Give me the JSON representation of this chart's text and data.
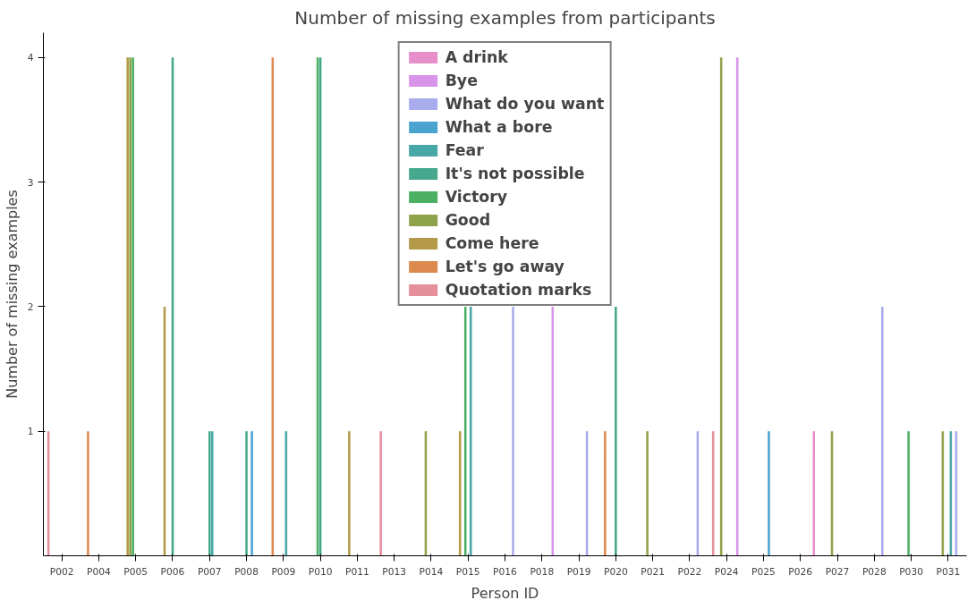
{
  "chart_data": {
    "type": "bar",
    "title": "Number of missing examples from participants",
    "xlabel": "Person ID",
    "ylabel": "Number of missing examples",
    "categories": [
      "P002",
      "P004",
      "P005",
      "P006",
      "P007",
      "P008",
      "P009",
      "P010",
      "P011",
      "P013",
      "P014",
      "P015",
      "P016",
      "P018",
      "P019",
      "P020",
      "P021",
      "P022",
      "P024",
      "P025",
      "P026",
      "P027",
      "P028",
      "P030",
      "P031"
    ],
    "ylim": [
      0,
      4.2
    ],
    "yticks": [
      1,
      2,
      3,
      4
    ],
    "grid": false,
    "legend": "top",
    "series": [
      {
        "name": "A drink",
        "color": "#e68fcb",
        "values": [
          null,
          null,
          null,
          null,
          null,
          null,
          null,
          null,
          null,
          null,
          null,
          null,
          null,
          null,
          null,
          null,
          null,
          null,
          null,
          null,
          1,
          null,
          null,
          null,
          null
        ]
      },
      {
        "name": "Bye",
        "color": "#d894e8",
        "values": [
          null,
          null,
          null,
          null,
          null,
          null,
          null,
          null,
          null,
          null,
          null,
          null,
          null,
          2,
          null,
          null,
          null,
          null,
          4,
          null,
          null,
          null,
          null,
          null,
          null
        ]
      },
      {
        "name": "What do you want",
        "color": "#a8acec",
        "values": [
          null,
          null,
          null,
          null,
          null,
          null,
          null,
          null,
          null,
          null,
          null,
          null,
          2,
          null,
          1,
          null,
          null,
          1,
          null,
          null,
          null,
          null,
          2,
          null,
          1
        ]
      },
      {
        "name": "What a bore",
        "color": "#4ba3cf",
        "values": [
          null,
          null,
          null,
          null,
          null,
          1,
          null,
          null,
          null,
          null,
          null,
          null,
          null,
          null,
          null,
          null,
          null,
          null,
          null,
          1,
          null,
          null,
          null,
          null,
          null
        ]
      },
      {
        "name": "Fear",
        "color": "#48a7a7",
        "values": [
          null,
          null,
          null,
          null,
          1,
          null,
          1,
          null,
          null,
          null,
          null,
          2,
          null,
          null,
          null,
          null,
          null,
          null,
          null,
          null,
          null,
          null,
          null,
          null,
          1
        ]
      },
      {
        "name": "It's not possible",
        "color": "#46a88d",
        "values": [
          null,
          null,
          null,
          4,
          1,
          1,
          null,
          4,
          null,
          null,
          null,
          null,
          null,
          null,
          null,
          2,
          null,
          null,
          null,
          null,
          null,
          null,
          null,
          null,
          null
        ]
      },
      {
        "name": "Victory",
        "color": "#4bb062",
        "values": [
          null,
          null,
          4,
          null,
          null,
          null,
          null,
          4,
          null,
          null,
          null,
          2,
          null,
          null,
          null,
          null,
          null,
          null,
          null,
          null,
          null,
          null,
          null,
          1,
          null
        ]
      },
      {
        "name": "Good",
        "color": "#8fa34a",
        "values": [
          null,
          null,
          4,
          null,
          null,
          null,
          null,
          null,
          null,
          null,
          1,
          null,
          null,
          null,
          null,
          null,
          1,
          null,
          4,
          null,
          null,
          1,
          null,
          null,
          1
        ]
      },
      {
        "name": "Come here",
        "color": "#b49a48",
        "values": [
          null,
          null,
          4,
          2,
          null,
          null,
          null,
          null,
          1,
          null,
          null,
          1,
          null,
          null,
          null,
          null,
          null,
          null,
          null,
          null,
          null,
          null,
          null,
          null,
          null
        ]
      },
      {
        "name": "Let's go away",
        "color": "#dd8a4f",
        "values": [
          null,
          1,
          null,
          null,
          null,
          null,
          4,
          null,
          null,
          null,
          null,
          null,
          null,
          null,
          null,
          1,
          null,
          null,
          null,
          null,
          null,
          null,
          null,
          null,
          null
        ]
      },
      {
        "name": "Quotation marks",
        "color": "#e58f9b",
        "values": [
          1,
          null,
          null,
          null,
          null,
          null,
          null,
          null,
          null,
          1,
          null,
          null,
          null,
          null,
          null,
          null,
          null,
          null,
          1,
          null,
          null,
          null,
          null,
          null,
          null
        ]
      }
    ]
  }
}
